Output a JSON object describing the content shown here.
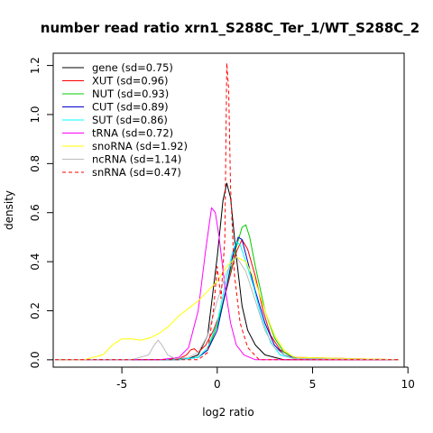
{
  "chart_data": {
    "type": "line",
    "title": "number read ratio xrn1_S288C_Ter_1/WT_S288C_2",
    "xlabel": "log2 ratio",
    "ylabel": "density",
    "xlim": [
      -8.6,
      9.8
    ],
    "ylim": [
      -0.03,
      1.25
    ],
    "xticks": [
      -5,
      0,
      5,
      10
    ],
    "yticks": [
      0.0,
      0.2,
      0.4,
      0.6,
      0.8,
      1.0,
      1.2
    ],
    "grid": false,
    "legend_position": "top-left",
    "series": [
      {
        "name": "gene (sd=0.75)",
        "color": "#000000",
        "dash": false,
        "x": [
          -8.5,
          -2.5,
          -1.5,
          -1.0,
          -0.5,
          0.0,
          0.3,
          0.5,
          0.7,
          1.0,
          1.3,
          1.6,
          2.0,
          2.5,
          3.0,
          3.5,
          9.5
        ],
        "y": [
          0,
          0,
          0.005,
          0.02,
          0.1,
          0.42,
          0.65,
          0.72,
          0.66,
          0.42,
          0.22,
          0.12,
          0.06,
          0.02,
          0.01,
          0,
          0
        ]
      },
      {
        "name": "XUT (sd=0.96)",
        "color": "#ff0000",
        "dash": false,
        "x": [
          -8.5,
          -3.0,
          -2.0,
          -1.6,
          -1.4,
          -1.2,
          -1.0,
          -0.6,
          -0.2,
          0.2,
          0.6,
          1.0,
          1.3,
          1.6,
          2.0,
          2.4,
          2.8,
          3.3,
          4.0,
          9.5
        ],
        "y": [
          0,
          0,
          0.005,
          0.02,
          0.04,
          0.045,
          0.03,
          0.06,
          0.12,
          0.2,
          0.32,
          0.44,
          0.49,
          0.45,
          0.34,
          0.2,
          0.1,
          0.04,
          0.01,
          0
        ]
      },
      {
        "name": "NUT (sd=0.93)",
        "color": "#00cc00",
        "dash": false,
        "x": [
          -8.5,
          -2.0,
          -1.0,
          -0.5,
          0.0,
          0.5,
          1.0,
          1.3,
          1.5,
          1.7,
          2.0,
          2.5,
          3.0,
          3.5,
          4.2,
          9.5
        ],
        "y": [
          0,
          0,
          0.01,
          0.04,
          0.14,
          0.3,
          0.46,
          0.54,
          0.55,
          0.5,
          0.38,
          0.2,
          0.09,
          0.03,
          0.005,
          0
        ]
      },
      {
        "name": "CUT (sd=0.89)",
        "color": "#0000cc",
        "dash": false,
        "x": [
          -8.5,
          -2.0,
          -1.0,
          -0.5,
          0.0,
          0.5,
          0.8,
          1.1,
          1.3,
          1.6,
          2.0,
          2.5,
          3.0,
          3.5,
          4.2,
          9.5
        ],
        "y": [
          0,
          0,
          0.01,
          0.04,
          0.12,
          0.3,
          0.42,
          0.5,
          0.49,
          0.4,
          0.28,
          0.15,
          0.06,
          0.02,
          0.005,
          0
        ]
      },
      {
        "name": "SUT (sd=0.86)",
        "color": "#00ffff",
        "dash": false,
        "x": [
          -8.5,
          -2.0,
          -1.0,
          -0.5,
          0.0,
          0.4,
          0.8,
          1.0,
          1.2,
          1.5,
          1.9,
          2.3,
          2.8,
          3.3,
          4.0,
          9.5
        ],
        "y": [
          0,
          0,
          0.01,
          0.05,
          0.15,
          0.3,
          0.44,
          0.48,
          0.47,
          0.4,
          0.3,
          0.18,
          0.07,
          0.02,
          0.005,
          0
        ]
      },
      {
        "name": "tRNA (sd=0.72)",
        "color": "#ff00ff",
        "dash": false,
        "x": [
          -8.5,
          -3.0,
          -2.0,
          -1.5,
          -1.0,
          -0.6,
          -0.3,
          -0.1,
          0.1,
          0.4,
          0.7,
          1.0,
          1.4,
          2.0,
          9.5
        ],
        "y": [
          0,
          0,
          0.01,
          0.05,
          0.2,
          0.45,
          0.62,
          0.6,
          0.5,
          0.3,
          0.15,
          0.06,
          0.02,
          0,
          0
        ]
      },
      {
        "name": "snoRNA (sd=1.92)",
        "color": "#ffff00",
        "dash": false,
        "x": [
          -8.5,
          -7.0,
          -6.0,
          -5.5,
          -5.0,
          -4.5,
          -4.0,
          -3.5,
          -3.0,
          -2.5,
          -2.0,
          -1.5,
          -1.0,
          -0.5,
          0.0,
          0.5,
          1.0,
          1.5,
          2.0,
          2.5,
          3.0,
          3.5,
          4.0,
          9.5
        ],
        "y": [
          0,
          0,
          0.02,
          0.06,
          0.085,
          0.085,
          0.08,
          0.09,
          0.11,
          0.14,
          0.18,
          0.21,
          0.24,
          0.28,
          0.32,
          0.38,
          0.42,
          0.4,
          0.32,
          0.2,
          0.1,
          0.04,
          0.01,
          0
        ]
      },
      {
        "name": "ncRNA (sd=1.14)",
        "color": "#bbbbbb",
        "dash": false,
        "x": [
          -8.5,
          -4.5,
          -3.6,
          -3.3,
          -3.1,
          -2.9,
          -2.6,
          -2.2,
          -1.5,
          -1.0,
          -0.5,
          0.0,
          0.5,
          1.0,
          1.5,
          2.0,
          2.5,
          3.0,
          3.5,
          4.0,
          9.5
        ],
        "y": [
          0,
          0,
          0.02,
          0.06,
          0.08,
          0.06,
          0.02,
          0.005,
          0.01,
          0.03,
          0.1,
          0.24,
          0.36,
          0.42,
          0.36,
          0.24,
          0.12,
          0.05,
          0.02,
          0.005,
          0
        ]
      },
      {
        "name": "snRNA (sd=0.47)",
        "color": "#ff0000",
        "dash": true,
        "x": [
          -8.5,
          -1.0,
          -0.5,
          -0.2,
          0.0,
          0.2,
          0.4,
          0.5,
          0.6,
          0.7,
          0.9,
          1.2,
          1.6,
          2.2,
          9.5
        ],
        "y": [
          0,
          0,
          0.03,
          0.2,
          0.38,
          0.25,
          0.5,
          1.21,
          1.1,
          0.7,
          0.35,
          0.15,
          0.05,
          0,
          0
        ]
      }
    ]
  }
}
